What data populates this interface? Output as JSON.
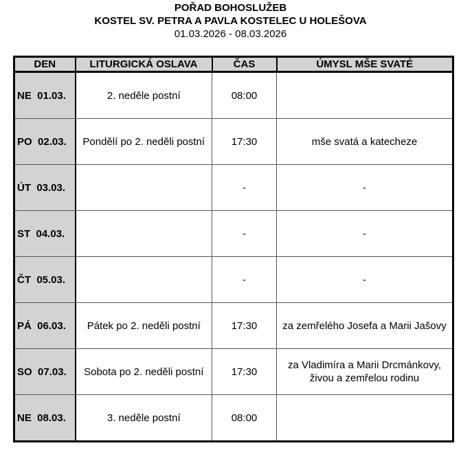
{
  "title": "POŘAD BOHOSLUŽEB",
  "subtitle": "KOSTEL SV. PETRA A PAVLA KOSTELEC U HOLEŠOVA",
  "date_range": "01.03.2026 - 08.03.2026",
  "headers": [
    "DEN",
    "LITURGICKÁ OSLAVA",
    "ČAS",
    "ÚMYSL MŠE SVATÉ"
  ],
  "rows": [
    {
      "day": "NE  01.03.",
      "celebration": "2. neděle postní",
      "time": "08:00",
      "intention": ""
    },
    {
      "day": "PO  02.03.",
      "celebration": "Pondělí po 2. neděli postní",
      "time": "17:30",
      "intention": "mše svatá a katecheze"
    },
    {
      "day": "ÚT  03.03.",
      "celebration": "",
      "time": "-",
      "intention": "-"
    },
    {
      "day": "ST  04.03.",
      "celebration": "",
      "time": "-",
      "intention": "-"
    },
    {
      "day": "ČT  05.03.",
      "celebration": "",
      "time": "-",
      "intention": "-"
    },
    {
      "day": "PÁ  06.03.",
      "celebration": "Pátek po 2. neděli postní",
      "time": "17:30",
      "intention": "za zemřelého Josefa a Marii Jašovy"
    },
    {
      "day": "SO  07.03.",
      "celebration": "Sobota po 2. neděli postní",
      "time": "17:30",
      "intention": "za Vladimíra a Marii Drcmánkovy, živou a zemřelou rodinu"
    },
    {
      "day": "NE  08.03.",
      "celebration": "3. neděle postní",
      "time": "08:00",
      "intention": ""
    }
  ]
}
